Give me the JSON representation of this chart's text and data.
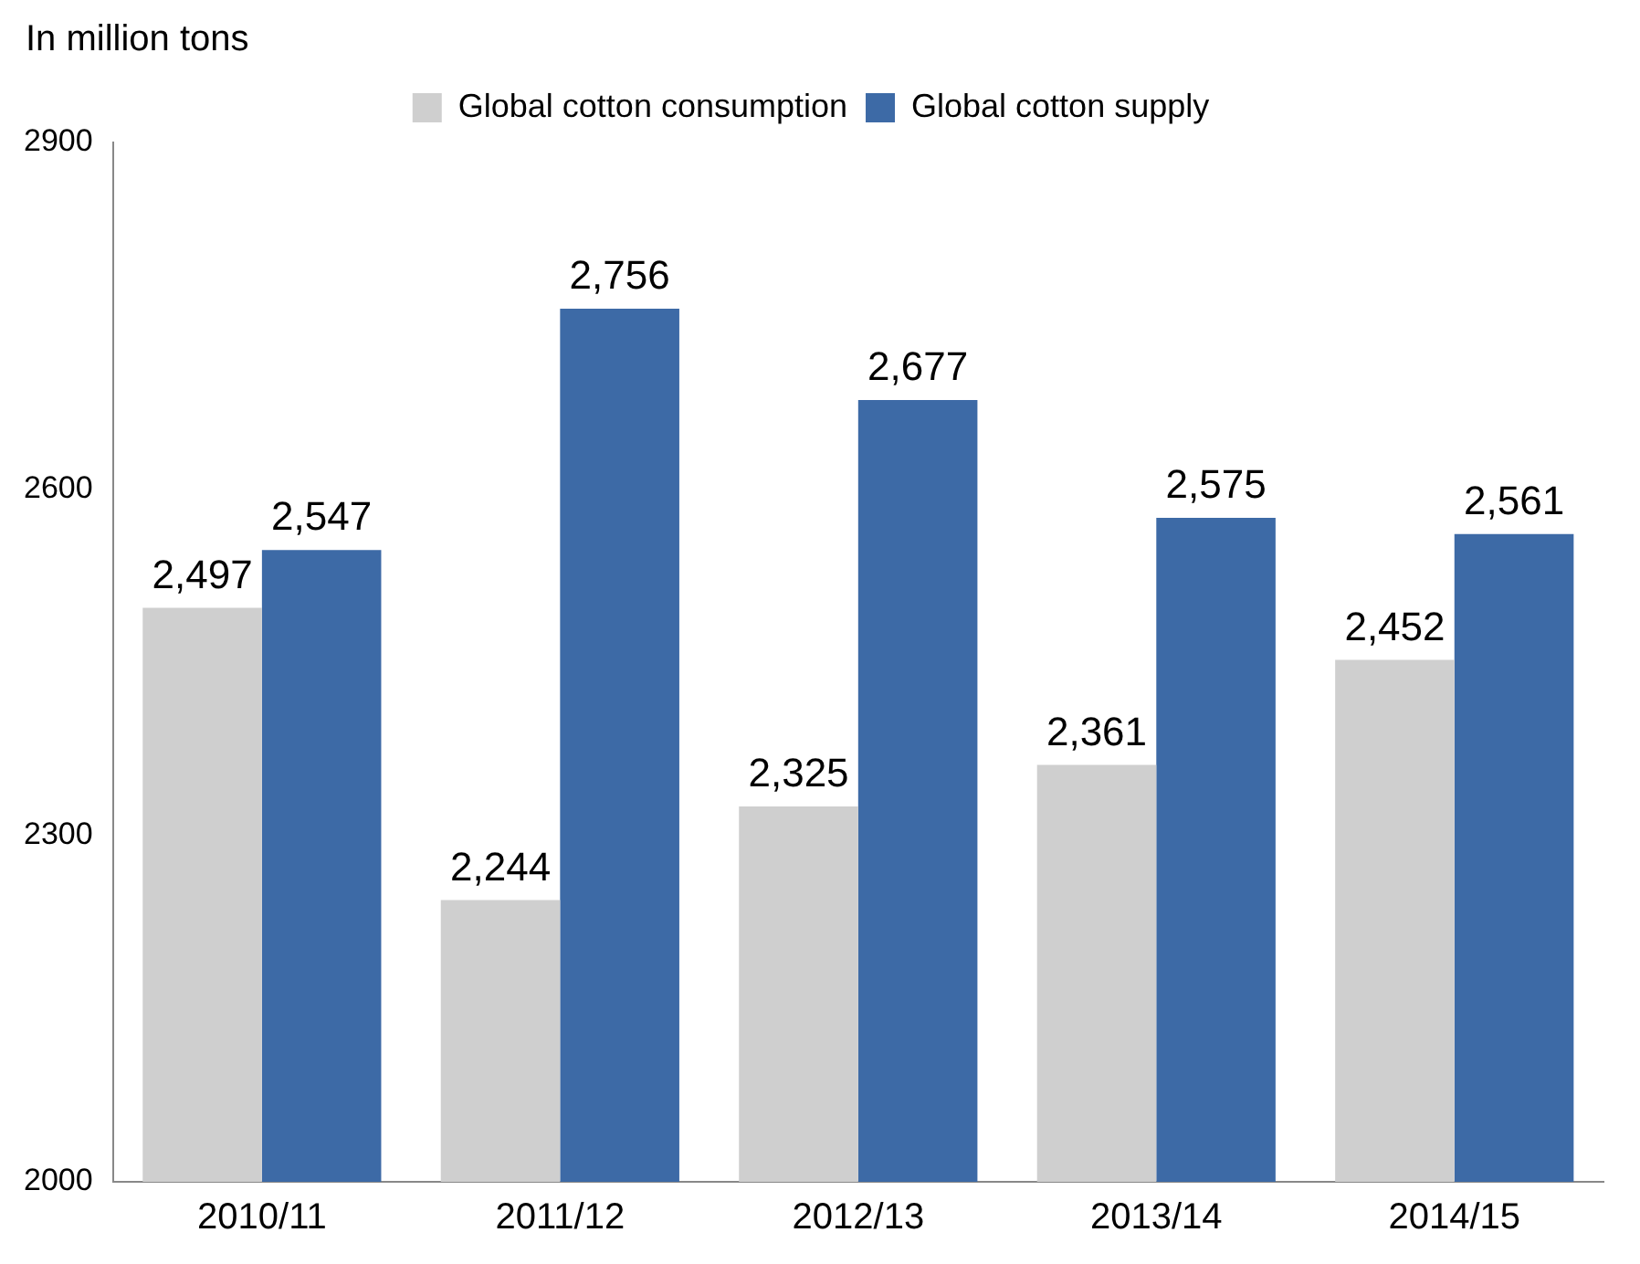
{
  "chart_data": {
    "type": "bar",
    "ylabel": "In million tons",
    "categories": [
      "2010/11",
      "2011/12",
      "2012/13",
      "2013/14",
      "2014/15"
    ],
    "series": [
      {
        "name": "Global cotton consumption",
        "color": "#cfcfcf",
        "values": [
          2497,
          2244,
          2325,
          2361,
          2452
        ],
        "value_labels": [
          "2,497",
          "2,244",
          "2,325",
          "2,361",
          "2,452"
        ]
      },
      {
        "name": "Global cotton supply",
        "color": "#3d6aa6",
        "values": [
          2547,
          2756,
          2677,
          2575,
          2561
        ],
        "value_labels": [
          "2,547",
          "2,756",
          "2,677",
          "2,575",
          "2,561"
        ]
      }
    ],
    "ylim": [
      2000,
      2900
    ],
    "yticks": [
      2000,
      2300,
      2600,
      2900
    ],
    "grid": false,
    "legend": "top"
  }
}
